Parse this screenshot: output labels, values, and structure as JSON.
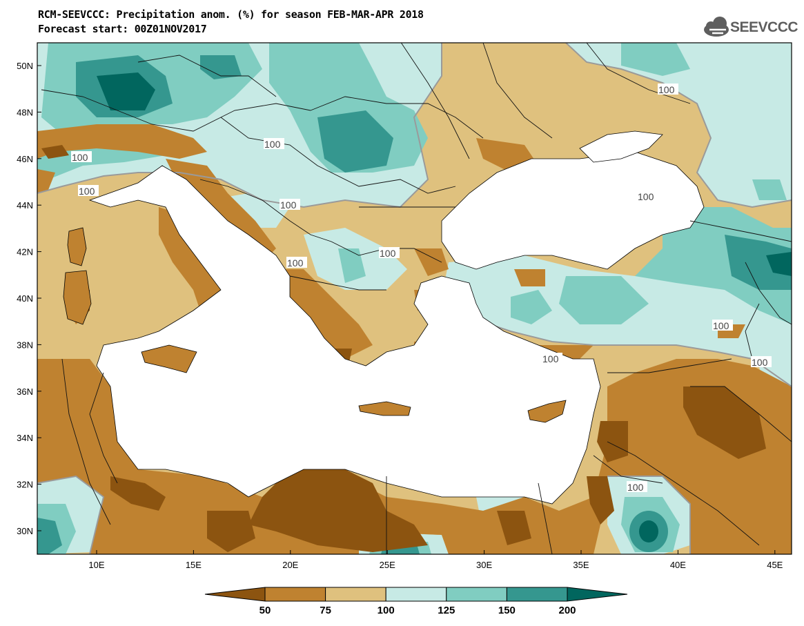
{
  "title": {
    "line1": "RCM-SEEVCCC: Precipitation anom. (%) for season FEB-MAR-APR 2018",
    "line2": "Forecast start: 00Z01NOV2017"
  },
  "logo": {
    "text": "SEEVCCC",
    "icon": "cloud-icon"
  },
  "axes": {
    "lat_labels": [
      "50N",
      "48N",
      "46N",
      "44N",
      "42N",
      "40N",
      "38N",
      "36N",
      "34N",
      "32N",
      "30N"
    ],
    "lon_labels": [
      "10E",
      "15E",
      "20E",
      "25E",
      "30E",
      "35E",
      "40E",
      "45E"
    ]
  },
  "contour_label": "100",
  "colorbar": {
    "labels": [
      "50",
      "75",
      "100",
      "125",
      "150",
      "200"
    ],
    "colors": [
      "#8c5410",
      "#bf8230",
      "#dfc17e",
      "#c7eae5",
      "#80cdc1",
      "#35978f",
      "#01665e"
    ]
  },
  "colors": {
    "sea": "#ffffff",
    "contour": "#9a9a9a"
  }
}
